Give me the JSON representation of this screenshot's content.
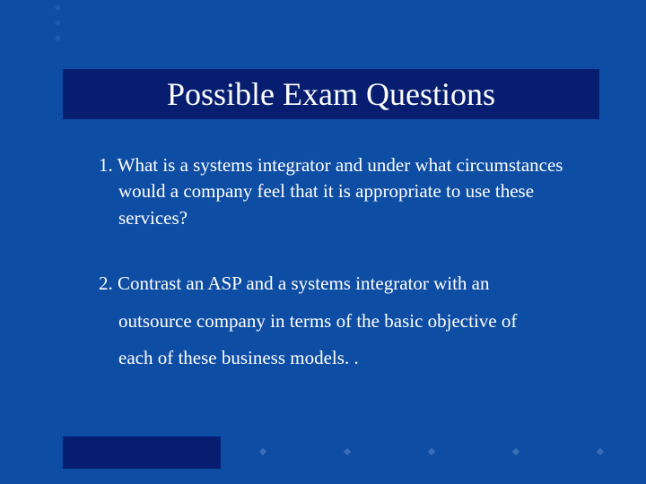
{
  "slide": {
    "background_color": "#0e4da4",
    "accent_bar_color": "#071e70",
    "text_color": "#ffffff",
    "diamond_color_left": "#1f5cb0",
    "diamond_color_bottom": "#3a6db8",
    "title": "Possible Exam Questions",
    "title_fontsize": 36,
    "body_fontsize": 21,
    "questions": [
      {
        "number": "1.",
        "text": "What is a systems integrator and under what circumstances would a company feel that it is appropriate to use these services?"
      },
      {
        "number": "2.",
        "lines": [
          "Contrast an ASP and a systems integrator with an",
          "outsource company in terms of the basic objective of",
          "each of these business models. ."
        ]
      }
    ],
    "decorative": {
      "left_diamonds_count": 3,
      "bottom_diamonds_count": 5
    }
  }
}
